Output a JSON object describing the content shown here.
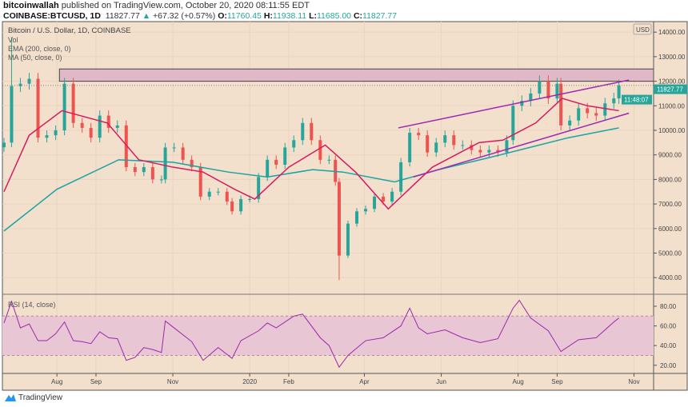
{
  "header": {
    "author": "bitcoinwallah",
    "published": "published on TradingView.com, October 20, 2020 08:11:55 EDT",
    "symbol": "COINBASE:BTCUSD, 1D",
    "last": "11827.77",
    "change": "+67.32 (+0.57%)",
    "o_label": "O:",
    "o": "11760.45",
    "h_label": "H:",
    "h": "11938.11",
    "l_label": "L:",
    "l": "11685.00",
    "c_label": "C:",
    "c": "11827.77"
  },
  "legend": {
    "title": "Bitcoin / U.S. Dollar, 1D, COINBASE",
    "vol": "Vol",
    "ema": "EMA (200, close, 0)",
    "ma": "MA (50, close, 0)",
    "rsi": "RSI (14, close)"
  },
  "price_axis": {
    "currency": "USD",
    "last_price_tag": "11827.77",
    "countdown_tag": "11:48:07"
  },
  "footer": {
    "brand": "TradingView"
  },
  "colors": {
    "background": "#f2dfcc",
    "up": "#26a69a",
    "down": "#ef5350",
    "ema200": "#1aa3a3",
    "ma50": "#d81b60",
    "channel": "#9c27b0",
    "zone": "#e1b8c8",
    "rsi": "#9c27b0",
    "rsi_band": "#e8c6d3"
  },
  "chart_data": [
    {
      "type": "candlestick",
      "title": "Bitcoin / U.S. Dollar, 1D, COINBASE",
      "ylabel": "USD",
      "ylim": [
        3500,
        14300
      ],
      "yticks": [
        4000,
        5000,
        6000,
        7000,
        8000,
        9000,
        10000,
        11000,
        12000,
        13000,
        14000
      ],
      "xticks": [
        {
          "date": "2019-08-01",
          "label": "Aug"
        },
        {
          "date": "2019-09-01",
          "label": "Sep"
        },
        {
          "date": "2019-11-01",
          "label": "Nov"
        },
        {
          "date": "2020-01-01",
          "label": "2020"
        },
        {
          "date": "2020-02-01",
          "label": "Feb"
        },
        {
          "date": "2020-04-01",
          "label": "Apr"
        },
        {
          "date": "2020-06-01",
          "label": "Jun"
        },
        {
          "date": "2020-08-01",
          "label": "Aug"
        },
        {
          "date": "2020-09-01",
          "label": "Sep"
        },
        {
          "date": "2020-11-01",
          "label": "Nov"
        }
      ],
      "grid": true,
      "close": [
        [
          "2019-06-20",
          9500
        ],
        [
          "2019-06-26",
          11800
        ],
        [
          "2019-07-03",
          11900
        ],
        [
          "2019-07-10",
          12100
        ],
        [
          "2019-07-17",
          9700
        ],
        [
          "2019-07-24",
          9800
        ],
        [
          "2019-07-31",
          10000
        ],
        [
          "2019-08-07",
          11900
        ],
        [
          "2019-08-14",
          10300
        ],
        [
          "2019-08-21",
          10100
        ],
        [
          "2019-08-28",
          9700
        ],
        [
          "2019-09-04",
          10600
        ],
        [
          "2019-09-11",
          10100
        ],
        [
          "2019-09-18",
          10200
        ],
        [
          "2019-09-25",
          8500
        ],
        [
          "2019-10-02",
          8300
        ],
        [
          "2019-10-09",
          8500
        ],
        [
          "2019-10-16",
          8000
        ],
        [
          "2019-10-23",
          8000
        ],
        [
          "2019-10-26",
          9300
        ],
        [
          "2019-11-02",
          9300
        ],
        [
          "2019-11-09",
          8800
        ],
        [
          "2019-11-16",
          8500
        ],
        [
          "2019-11-23",
          7300
        ],
        [
          "2019-11-30",
          7500
        ],
        [
          "2019-12-07",
          7500
        ],
        [
          "2019-12-14",
          7100
        ],
        [
          "2019-12-18",
          6700
        ],
        [
          "2019-12-25",
          7200
        ],
        [
          "2020-01-01",
          7200
        ],
        [
          "2020-01-08",
          8100
        ],
        [
          "2020-01-15",
          8800
        ],
        [
          "2020-01-22",
          8600
        ],
        [
          "2020-01-29",
          9300
        ],
        [
          "2020-02-05",
          9600
        ],
        [
          "2020-02-12",
          10300
        ],
        [
          "2020-02-19",
          9600
        ],
        [
          "2020-02-26",
          8800
        ],
        [
          "2020-03-04",
          8800
        ],
        [
          "2020-03-09",
          7900
        ],
        [
          "2020-03-12",
          4900
        ],
        [
          "2020-03-19",
          6200
        ],
        [
          "2020-03-26",
          6700
        ],
        [
          "2020-04-02",
          6800
        ],
        [
          "2020-04-09",
          7300
        ],
        [
          "2020-04-16",
          7100
        ],
        [
          "2020-04-23",
          7500
        ],
        [
          "2020-04-30",
          8700
        ],
        [
          "2020-05-07",
          9900
        ],
        [
          "2020-05-14",
          9800
        ],
        [
          "2020-05-21",
          9100
        ],
        [
          "2020-05-28",
          9500
        ],
        [
          "2020-06-04",
          9800
        ],
        [
          "2020-06-11",
          9400
        ],
        [
          "2020-06-18",
          9400
        ],
        [
          "2020-06-25",
          9200
        ],
        [
          "2020-07-02",
          9100
        ],
        [
          "2020-07-09",
          9200
        ],
        [
          "2020-07-16",
          9100
        ],
        [
          "2020-07-23",
          9600
        ],
        [
          "2020-07-28",
          11000
        ],
        [
          "2020-08-04",
          11200
        ],
        [
          "2020-08-11",
          11500
        ],
        [
          "2020-08-18",
          12000
        ],
        [
          "2020-08-25",
          11300
        ],
        [
          "2020-09-01",
          11900
        ],
        [
          "2020-09-04",
          10200
        ],
        [
          "2020-09-11",
          10400
        ],
        [
          "2020-09-18",
          10900
        ],
        [
          "2020-09-25",
          10700
        ],
        [
          "2020-10-02",
          10600
        ],
        [
          "2020-10-09",
          11100
        ],
        [
          "2020-10-16",
          11300
        ],
        [
          "2020-10-20",
          11827.77
        ]
      ],
      "series": [
        {
          "name": "MA (50, close, 0)",
          "values": [
            [
              "2019-06-20",
              7500
            ],
            [
              "2019-07-10",
              9800
            ],
            [
              "2019-08-05",
              10800
            ],
            [
              "2019-09-10",
              10300
            ],
            [
              "2019-10-05",
              8800
            ],
            [
              "2019-11-01",
              8500
            ],
            [
              "2019-11-25",
              8300
            ],
            [
              "2019-12-20",
              7600
            ],
            [
              "2020-01-05",
              7200
            ],
            [
              "2020-02-01",
              8500
            ],
            [
              "2020-03-01",
              9400
            ],
            [
              "2020-03-25",
              8300
            ],
            [
              "2020-04-20",
              6800
            ],
            [
              "2020-05-25",
              8500
            ],
            [
              "2020-07-01",
              9500
            ],
            [
              "2020-07-20",
              9600
            ],
            [
              "2020-08-15",
              10300
            ],
            [
              "2020-09-05",
              11300
            ],
            [
              "2020-09-25",
              11000
            ],
            [
              "2020-10-20",
              10800
            ]
          ]
        },
        {
          "name": "EMA (200, close, 0)",
          "values": [
            [
              "2019-06-20",
              5900
            ],
            [
              "2019-08-01",
              7600
            ],
            [
              "2019-09-19",
              8800
            ],
            [
              "2019-11-01",
              8700
            ],
            [
              "2019-12-15",
              8300
            ],
            [
              "2020-01-15",
              8100
            ],
            [
              "2020-02-20",
              8400
            ],
            [
              "2020-03-15",
              8300
            ],
            [
              "2020-04-25",
              7900
            ],
            [
              "2020-05-30",
              8400
            ],
            [
              "2020-07-10",
              8900
            ],
            [
              "2020-08-10",
              9300
            ],
            [
              "2020-09-10",
              9700
            ],
            [
              "2020-10-20",
              10100
            ]
          ]
        }
      ],
      "annotations": {
        "resistance_zone": {
          "from": "2019-08-03",
          "low": 12000,
          "high": 12500
        },
        "channel_upper": [
          [
            "2020-04-28",
            10100
          ],
          [
            "2020-10-28",
            12050
          ]
        ],
        "channel_lower": [
          [
            "2020-05-10",
            8100
          ],
          [
            "2020-10-28",
            10700
          ]
        ]
      }
    },
    {
      "type": "line",
      "title": "RSI (14, close)",
      "ylim": [
        13,
        92
      ],
      "yticks": [
        20,
        40,
        60,
        80
      ],
      "bands": [
        30,
        70
      ],
      "values": [
        [
          "2019-06-20",
          63
        ],
        [
          "2019-06-26",
          85
        ],
        [
          "2019-07-03",
          58
        ],
        [
          "2019-07-10",
          62
        ],
        [
          "2019-07-17",
          45
        ],
        [
          "2019-07-24",
          45
        ],
        [
          "2019-07-31",
          52
        ],
        [
          "2019-08-07",
          64
        ],
        [
          "2019-08-14",
          45
        ],
        [
          "2019-08-21",
          44
        ],
        [
          "2019-08-28",
          42
        ],
        [
          "2019-09-04",
          54
        ],
        [
          "2019-09-11",
          48
        ],
        [
          "2019-09-18",
          47
        ],
        [
          "2019-09-25",
          25
        ],
        [
          "2019-10-02",
          28
        ],
        [
          "2019-10-09",
          38
        ],
        [
          "2019-10-16",
          36
        ],
        [
          "2019-10-23",
          33
        ],
        [
          "2019-10-26",
          65
        ],
        [
          "2019-11-02",
          58
        ],
        [
          "2019-11-16",
          44
        ],
        [
          "2019-11-25",
          25
        ],
        [
          "2019-12-07",
          38
        ],
        [
          "2019-12-18",
          27
        ],
        [
          "2019-12-25",
          45
        ],
        [
          "2020-01-08",
          55
        ],
        [
          "2020-01-15",
          63
        ],
        [
          "2020-01-22",
          58
        ],
        [
          "2020-02-05",
          70
        ],
        [
          "2020-02-12",
          72
        ],
        [
          "2020-02-26",
          48
        ],
        [
          "2020-03-04",
          40
        ],
        [
          "2020-03-12",
          18
        ],
        [
          "2020-03-19",
          30
        ],
        [
          "2020-04-02",
          45
        ],
        [
          "2020-04-16",
          48
        ],
        [
          "2020-04-30",
          60
        ],
        [
          "2020-05-07",
          78
        ],
        [
          "2020-05-14",
          58
        ],
        [
          "2020-05-21",
          52
        ],
        [
          "2020-06-04",
          56
        ],
        [
          "2020-06-18",
          48
        ],
        [
          "2020-07-02",
          43
        ],
        [
          "2020-07-16",
          47
        ],
        [
          "2020-07-28",
          78
        ],
        [
          "2020-08-02",
          86
        ],
        [
          "2020-08-11",
          68
        ],
        [
          "2020-08-25",
          55
        ],
        [
          "2020-09-04",
          34
        ],
        [
          "2020-09-18",
          46
        ],
        [
          "2020-10-02",
          48
        ],
        [
          "2020-10-16",
          64
        ],
        [
          "2020-10-20",
          68
        ]
      ]
    }
  ]
}
